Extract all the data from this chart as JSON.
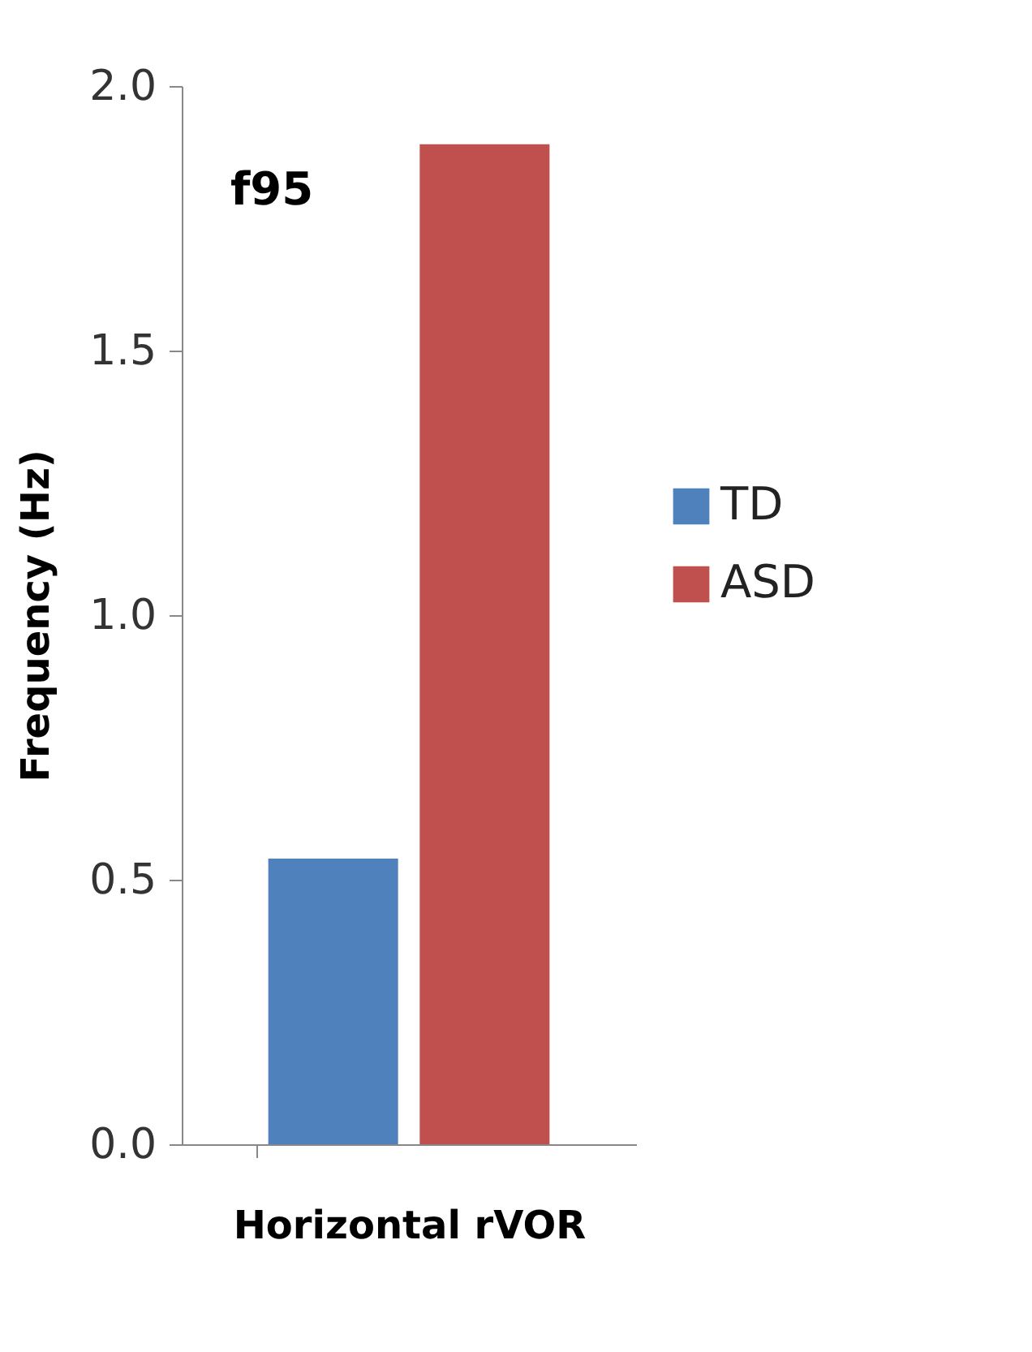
{
  "chart_data": {
    "type": "bar",
    "categories": [
      null
    ],
    "series": [
      {
        "name": "TD",
        "color": "#4f81bd",
        "values": [
          0.54
        ]
      },
      {
        "name": "ASD",
        "color": "#c0504d",
        "values": [
          1.89
        ]
      }
    ],
    "ylim": [
      0,
      2
    ],
    "yticks": [
      {
        "value": 0,
        "label": "0.0"
      },
      {
        "value": 0.5,
        "label": "0.5"
      },
      {
        "value": 1,
        "label": "1.0"
      },
      {
        "value": 1.5,
        "label": "1.5"
      },
      {
        "value": 2,
        "label": "2.0"
      }
    ],
    "ylabel": "Frequency (Hz)",
    "xlabel": "Horizontal rVOR",
    "annotations": [
      "f95"
    ],
    "legend": "right",
    "grid": false,
    "tick_labels": "y"
  }
}
